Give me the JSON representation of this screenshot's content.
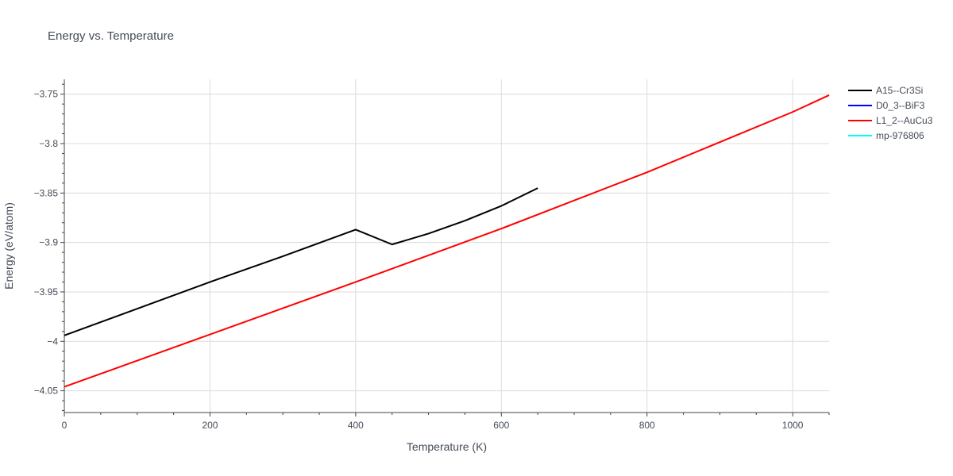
{
  "chart_data": {
    "type": "line",
    "title": "Energy vs. Temperature",
    "xlabel": "Temperature (K)",
    "ylabel": "Energy (eV/atom)",
    "xlim": [
      0,
      1050
    ],
    "ylim": [
      -4.072,
      -3.735
    ],
    "x_ticks": [
      0,
      200,
      400,
      600,
      800,
      1000
    ],
    "y_ticks": [
      -3.75,
      -3.8,
      -3.85,
      -3.9,
      -3.95,
      -4.0,
      -4.05
    ],
    "y_tick_labels": [
      "−3.75",
      "−3.8",
      "−3.85",
      "−3.9",
      "−3.95",
      "−4",
      "−4.05"
    ],
    "grid": true,
    "legend_position": "top-right",
    "series": [
      {
        "name": "A15--Cr3Si",
        "color": "#000000",
        "x": [
          0,
          100,
          200,
          300,
          400,
          450,
          500,
          550,
          600,
          650
        ],
        "y": [
          -3.994,
          -3.967,
          -3.94,
          -3.914,
          -3.887,
          -3.902,
          -3.891,
          -3.878,
          -3.863,
          -3.845
        ]
      },
      {
        "name": "D0_3--BiF3",
        "color": "#0000ff",
        "x": [],
        "y": []
      },
      {
        "name": "L1_2--AuCu3",
        "color": "#ff0000",
        "x": [
          0,
          200,
          400,
          600,
          800,
          1000,
          1050
        ],
        "y": [
          -4.046,
          -3.993,
          -3.94,
          -3.886,
          -3.829,
          -3.768,
          -3.751
        ]
      },
      {
        "name": "mp-976806",
        "color": "#00ffff",
        "x": [],
        "y": []
      }
    ]
  }
}
